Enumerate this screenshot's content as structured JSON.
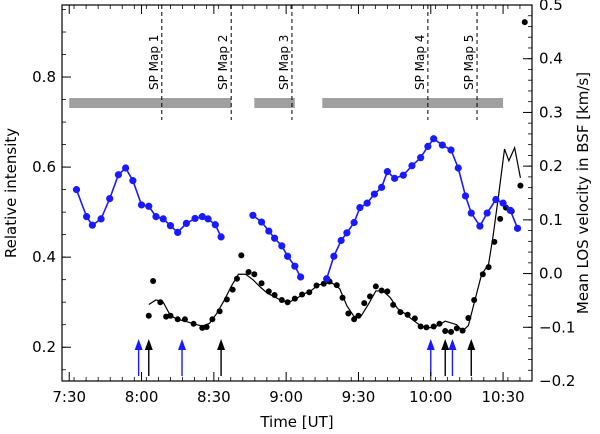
{
  "chart_data": {
    "type": "scatter",
    "xlabel": "Time [UT]",
    "ylabel_left": "Relative intensity",
    "ylabel_right": "Mean LOS velocity in BSF [km/s]",
    "x_unit": "UT (hours)",
    "xlim": [
      7.45,
      10.7
    ],
    "ylim_left": [
      0.125,
      0.96
    ],
    "ylim_right": [
      -0.2,
      0.5
    ],
    "x_ticks": [
      {
        "v": 7.5,
        "label": "7:30"
      },
      {
        "v": 8.0,
        "label": "8:00"
      },
      {
        "v": 8.5,
        "label": "8:30"
      },
      {
        "v": 9.0,
        "label": "9:00"
      },
      {
        "v": 9.5,
        "label": "9:30"
      },
      {
        "v": 10.0,
        "label": "10:00"
      },
      {
        "v": 10.5,
        "label": "10:30"
      }
    ],
    "y_left_ticks": [
      {
        "v": 0.2,
        "label": "0.2"
      },
      {
        "v": 0.4,
        "label": "0.4"
      },
      {
        "v": 0.6,
        "label": "0.6"
      },
      {
        "v": 0.8,
        "label": "0.8"
      }
    ],
    "y_right_ticks": [
      {
        "v": -0.2,
        "label": "−0.2"
      },
      {
        "v": -0.1,
        "label": "−0.1"
      },
      {
        "v": 0.0,
        "label": "0.0"
      },
      {
        "v": 0.1,
        "label": "0.1"
      },
      {
        "v": 0.2,
        "label": "0.2"
      },
      {
        "v": 0.3,
        "label": "0.3"
      },
      {
        "v": 0.4,
        "label": "0.4"
      },
      {
        "v": 0.5,
        "label": "0.5"
      }
    ],
    "colors": {
      "intensity": "#1a1aff",
      "velocity": "#000000",
      "bars": "#a0a0a0"
    },
    "sp_maps": [
      {
        "label": "SP Map 1",
        "x": 8.14
      },
      {
        "label": "SP Map 2",
        "x": 8.62
      },
      {
        "label": "SP Map 3",
        "x": 9.04
      },
      {
        "label": "SP Map 4",
        "x": 9.98
      },
      {
        "label": "SP Map 5",
        "x": 10.32
      }
    ],
    "coverage_bars": [
      [
        7.5,
        8.62
      ],
      [
        8.78,
        9.06
      ],
      [
        9.25,
        10.5
      ]
    ],
    "blue_arrows": [
      7.98,
      8.28,
      10.0,
      10.15
    ],
    "black_arrows": [
      8.05,
      8.55,
      10.1,
      10.28
    ],
    "series": [
      {
        "name": "Relative intensity",
        "axis": "left",
        "segments": [
          [
            [
              7.55,
              0.55
            ],
            [
              7.62,
              0.49
            ],
            [
              7.66,
              0.471
            ],
            [
              7.72,
              0.485
            ],
            [
              7.78,
              0.53
            ],
            [
              7.84,
              0.583
            ],
            [
              7.89,
              0.598
            ],
            [
              7.94,
              0.57
            ],
            [
              8.0,
              0.516
            ],
            [
              8.05,
              0.513
            ],
            [
              8.1,
              0.49
            ],
            [
              8.15,
              0.485
            ],
            [
              8.2,
              0.47
            ],
            [
              8.25,
              0.455
            ],
            [
              8.31,
              0.475
            ],
            [
              8.37,
              0.486
            ],
            [
              8.42,
              0.49
            ],
            [
              8.46,
              0.485
            ],
            [
              8.51,
              0.472
            ],
            [
              8.55,
              0.445
            ]
          ],
          [
            [
              8.77,
              0.493
            ],
            [
              8.83,
              0.478
            ],
            [
              8.88,
              0.458
            ],
            [
              8.92,
              0.442
            ],
            [
              8.97,
              0.425
            ],
            [
              9.01,
              0.402
            ],
            [
              9.06,
              0.38
            ],
            [
              9.1,
              0.356
            ]
          ],
          [
            [
              9.28,
              0.352
            ],
            [
              9.33,
              0.402
            ],
            [
              9.38,
              0.437
            ],
            [
              9.42,
              0.454
            ],
            [
              9.47,
              0.477
            ],
            [
              9.51,
              0.51
            ],
            [
              9.56,
              0.52
            ],
            [
              9.61,
              0.54
            ],
            [
              9.66,
              0.555
            ],
            [
              9.7,
              0.59
            ],
            [
              9.75,
              0.575
            ],
            [
              9.81,
              0.582
            ],
            [
              9.87,
              0.603
            ],
            [
              9.93,
              0.621
            ],
            [
              9.98,
              0.646
            ],
            [
              10.02,
              0.663
            ],
            [
              10.08,
              0.649
            ],
            [
              10.14,
              0.638
            ],
            [
              10.19,
              0.598
            ],
            [
              10.24,
              0.536
            ],
            [
              10.28,
              0.498
            ],
            [
              10.34,
              0.469
            ],
            [
              10.39,
              0.498
            ],
            [
              10.45,
              0.528
            ],
            [
              10.5,
              0.52
            ],
            [
              10.55,
              0.504
            ],
            [
              10.6,
              0.464
            ]
          ]
        ]
      },
      {
        "name": "Mean LOS velocity in BSF",
        "axis": "left",
        "points": [
          [
            8.05,
            0.27
          ],
          [
            8.08,
            0.347
          ],
          [
            8.13,
            0.3
          ],
          [
            8.17,
            0.268
          ],
          [
            8.2,
            0.27
          ],
          [
            8.25,
            0.262
          ],
          [
            8.3,
            0.262
          ],
          [
            8.36,
            0.252
          ],
          [
            8.42,
            0.243
          ],
          [
            8.45,
            0.245
          ],
          [
            8.49,
            0.262
          ],
          [
            8.54,
            0.28
          ],
          [
            8.59,
            0.306
          ],
          [
            8.63,
            0.328
          ],
          [
            8.66,
            0.352
          ],
          [
            8.69,
            0.404
          ],
          [
            8.74,
            0.367
          ],
          [
            8.78,
            0.362
          ],
          [
            8.83,
            0.342
          ],
          [
            8.88,
            0.324
          ],
          [
            8.92,
            0.316
          ],
          [
            8.97,
            0.305
          ],
          [
            9.01,
            0.3
          ],
          [
            9.06,
            0.308
          ],
          [
            9.11,
            0.317
          ],
          [
            9.16,
            0.322
          ],
          [
            9.21,
            0.337
          ],
          [
            9.26,
            0.341
          ],
          [
            9.3,
            0.346
          ],
          [
            9.35,
            0.338
          ],
          [
            9.39,
            0.31
          ],
          [
            9.43,
            0.275
          ],
          [
            9.47,
            0.262
          ],
          [
            9.5,
            0.27
          ],
          [
            9.54,
            0.298
          ],
          [
            9.58,
            0.313
          ],
          [
            9.62,
            0.335
          ],
          [
            9.66,
            0.326
          ],
          [
            9.7,
            0.324
          ],
          [
            9.74,
            0.294
          ],
          [
            9.79,
            0.278
          ],
          [
            9.84,
            0.272
          ],
          [
            9.89,
            0.264
          ],
          [
            9.93,
            0.246
          ],
          [
            9.97,
            0.244
          ],
          [
            10.02,
            0.246
          ],
          [
            10.06,
            0.252
          ],
          [
            10.1,
            0.236
          ],
          [
            10.14,
            0.234
          ],
          [
            10.18,
            0.242
          ],
          [
            10.22,
            0.237
          ],
          [
            10.26,
            0.265
          ],
          [
            10.3,
            0.305
          ],
          [
            10.36,
            0.362
          ],
          [
            10.4,
            0.378
          ],
          [
            10.44,
            0.434
          ],
          [
            10.48,
            0.485
          ],
          [
            10.52,
            0.51
          ],
          [
            10.56,
            0.502
          ],
          [
            10.62,
            0.559
          ],
          [
            10.65,
            0.922
          ]
        ],
        "fit_line": [
          [
            8.05,
            0.295
          ],
          [
            8.1,
            0.305
          ],
          [
            8.15,
            0.3
          ],
          [
            8.2,
            0.27
          ],
          [
            8.25,
            0.262
          ],
          [
            8.3,
            0.258
          ],
          [
            8.36,
            0.252
          ],
          [
            8.42,
            0.247
          ],
          [
            8.47,
            0.253
          ],
          [
            8.52,
            0.275
          ],
          [
            8.57,
            0.303
          ],
          [
            8.62,
            0.335
          ],
          [
            8.67,
            0.362
          ],
          [
            8.72,
            0.362
          ],
          [
            8.77,
            0.35
          ],
          [
            8.82,
            0.334
          ],
          [
            8.87,
            0.32
          ],
          [
            8.92,
            0.312
          ],
          [
            8.97,
            0.303
          ],
          [
            9.02,
            0.3
          ],
          [
            9.07,
            0.308
          ],
          [
            9.12,
            0.318
          ],
          [
            9.17,
            0.325
          ],
          [
            9.22,
            0.338
          ],
          [
            9.27,
            0.342
          ],
          [
            9.32,
            0.342
          ],
          [
            9.37,
            0.33
          ],
          [
            9.42,
            0.292
          ],
          [
            9.47,
            0.268
          ],
          [
            9.52,
            0.27
          ],
          [
            9.57,
            0.296
          ],
          [
            9.62,
            0.325
          ],
          [
            9.67,
            0.325
          ],
          [
            9.72,
            0.31
          ],
          [
            9.77,
            0.286
          ],
          [
            9.82,
            0.275
          ],
          [
            9.87,
            0.262
          ],
          [
            9.92,
            0.25
          ],
          [
            9.97,
            0.243
          ],
          [
            10.02,
            0.244
          ],
          [
            10.07,
            0.252
          ],
          [
            10.1,
            0.258
          ],
          [
            10.14,
            0.254
          ],
          [
            10.18,
            0.25
          ],
          [
            10.22,
            0.236
          ],
          [
            10.26,
            0.248
          ],
          [
            10.3,
            0.298
          ],
          [
            10.35,
            0.36
          ],
          [
            10.4,
            0.385
          ],
          [
            10.43,
            0.445
          ],
          [
            10.47,
            0.54
          ],
          [
            10.51,
            0.64
          ],
          [
            10.54,
            0.614
          ],
          [
            10.58,
            0.643
          ],
          [
            10.62,
            0.576
          ]
        ]
      }
    ]
  }
}
